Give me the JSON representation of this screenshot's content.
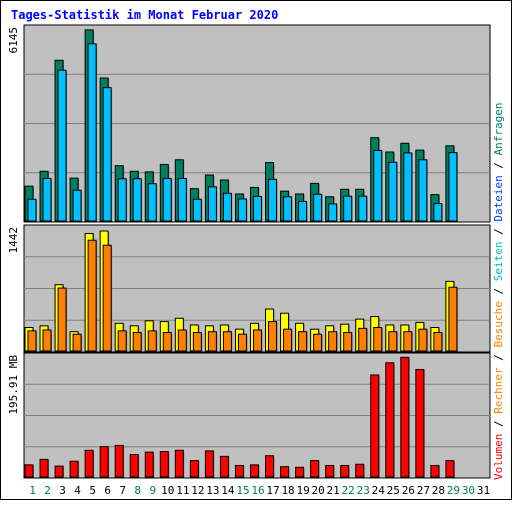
{
  "chart_data": {
    "type": "bar",
    "title": "Tages-Statistik im Monat Februar 2020",
    "categories": [
      "1",
      "2",
      "3",
      "4",
      "5",
      "6",
      "7",
      "8",
      "9",
      "10",
      "11",
      "12",
      "13",
      "14",
      "15",
      "16",
      "17",
      "18",
      "19",
      "20",
      "21",
      "22",
      "23",
      "24",
      "25",
      "26",
      "27",
      "28",
      "29",
      "30",
      "31"
    ],
    "weekend_days": [
      "1",
      "2",
      "8",
      "9",
      "15",
      "16",
      "22",
      "23",
      "29",
      "30"
    ],
    "panels": [
      {
        "name": "requests",
        "max_label": "6145",
        "ymax": 6145,
        "series": [
          {
            "name": "Anfragen",
            "color": "#008060",
            "values": [
              1120,
              1600,
              5170,
              1380,
              6150,
              4600,
              1780,
              1600,
              1580,
              1820,
              1970,
              1040,
              1480,
              1320,
              870,
              1080,
              1880,
              960,
              870,
              1210,
              780,
              1020,
              1020,
              2680,
              2220,
              2500,
              2280,
              850,
              2420,
              null,
              null
            ]
          },
          {
            "name": "Dateien",
            "color": "#00c0ff",
            "values": [
              700,
              1370,
              4850,
              990,
              5700,
              4290,
              1360,
              1360,
              1200,
              1370,
              1370,
              700,
              1100,
              890,
              710,
              790,
              1340,
              780,
              630,
              860,
              550,
              800,
              800,
              2270,
              1890,
              2190,
              1970,
              560,
              2200,
              null,
              null
            ]
          }
        ]
      },
      {
        "name": "visits",
        "max_label": "1442",
        "ymax": 1442,
        "series": [
          {
            "name": "Seiten",
            "color": "#ffff00",
            "values": [
              280,
              300,
              790,
              230,
              1400,
              1430,
              330,
              300,
              360,
              350,
              390,
              310,
              300,
              310,
              260,
              330,
              500,
              450,
              330,
              260,
              300,
              320,
              380,
              410,
              310,
              310,
              340,
              280,
              830,
              null,
              null
            ]
          },
          {
            "name": "Besuche",
            "color": "#ff8000",
            "values": [
              240,
              250,
              750,
              200,
              1320,
              1260,
              240,
              220,
              240,
              220,
              250,
              220,
              230,
              230,
              200,
              250,
              350,
              260,
              230,
              200,
              230,
              220,
              270,
              280,
              230,
              230,
              260,
              220,
              760,
              null,
              null
            ]
          }
        ]
      },
      {
        "name": "volume",
        "max_label": "195.91 MB",
        "ymax": 195.91,
        "series": [
          {
            "name": "Volumen",
            "color": "#ff0000",
            "values": [
              20,
              29,
              18,
              26,
              44,
              50,
              52,
              37,
              41,
              42,
              44,
              27,
              43,
              34,
              19,
              20,
              35,
              17,
              16,
              27,
              19,
              19,
              21,
              168,
              188,
              197,
              177,
              19,
              27,
              null,
              null
            ]
          },
          {
            "name": "Rechner",
            "color": "#ff8000",
            "values": []
          }
        ]
      }
    ],
    "side_legend": [
      {
        "text": "Volumen",
        "color": "#ff0000"
      },
      {
        "text": " / ",
        "color": "#000000"
      },
      {
        "text": "Rechner",
        "color": "#ff8000"
      },
      {
        "text": " / ",
        "color": "#000000"
      },
      {
        "text": "Besuche",
        "color": "#ff8000"
      },
      {
        "text": " / ",
        "color": "#000000"
      },
      {
        "text": "Seiten",
        "color": "#00c0c0"
      },
      {
        "text": " / ",
        "color": "#000000"
      },
      {
        "text": "Dateien",
        "color": "#0040ff"
      },
      {
        "text": " / ",
        "color": "#000000"
      },
      {
        "text": "Anfragen",
        "color": "#008060"
      }
    ],
    "colors": {
      "title": "#0000ff",
      "plot_background": "#c0c0c0",
      "weekday_label": "#000000",
      "weekend_label": "#008040",
      "grid": "#808080"
    }
  }
}
